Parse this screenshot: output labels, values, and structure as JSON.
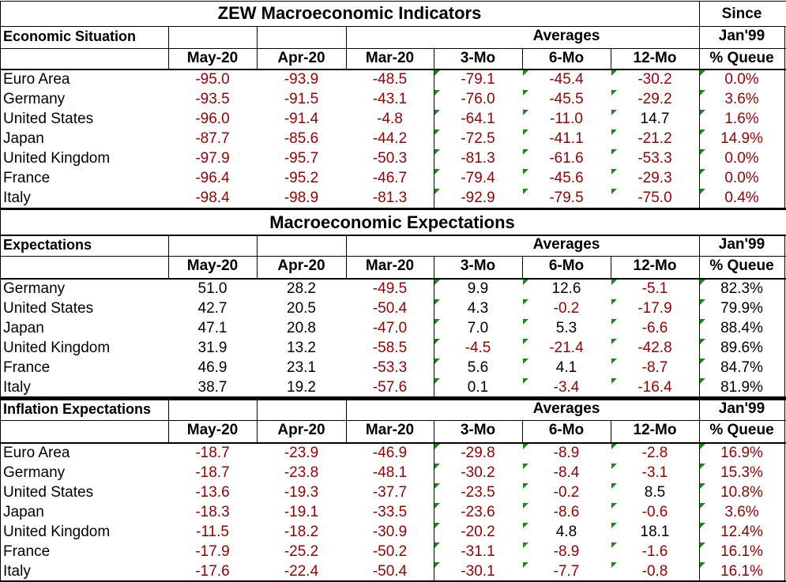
{
  "title": "ZEW Macroeconomic Indicators",
  "since_label": "Since",
  "columns": [
    "May-20",
    "Apr-20",
    "Mar-20",
    "3-Mo",
    "6-Mo",
    "12-Mo",
    "% Queue"
  ],
  "averages_label": "Averages",
  "jan_label": "Jan'99",
  "sections": [
    {
      "id": "economic-situation",
      "heading": "Economic Situation",
      "rows": [
        {
          "name": "Euro Area",
          "values": [
            "-95.0",
            "-93.9",
            "-48.5",
            "-79.1",
            "-45.4",
            "-30.2",
            "0.0%"
          ]
        },
        {
          "name": "Germany",
          "values": [
            "-93.5",
            "-91.5",
            "-43.1",
            "-76.0",
            "-45.5",
            "-29.2",
            "3.6%"
          ]
        },
        {
          "name": "United States",
          "values": [
            "-96.0",
            "-91.4",
            "-4.8",
            "-64.1",
            "-11.0",
            "14.7",
            "1.6%"
          ]
        },
        {
          "name": "Japan",
          "values": [
            "-87.7",
            "-85.6",
            "-44.2",
            "-72.5",
            "-41.1",
            "-21.2",
            "14.9%"
          ]
        },
        {
          "name": "United Kingdom",
          "values": [
            "-97.9",
            "-95.7",
            "-50.3",
            "-81.3",
            "-61.6",
            "-53.3",
            "0.0%"
          ]
        },
        {
          "name": "France",
          "values": [
            "-96.4",
            "-95.2",
            "-46.7",
            "-79.4",
            "-45.6",
            "-29.3",
            "0.0%"
          ]
        },
        {
          "name": "Italy",
          "values": [
            "-98.4",
            "-98.9",
            "-81.3",
            "-92.9",
            "-79.5",
            "-75.0",
            "0.4%"
          ]
        }
      ]
    },
    {
      "id": "expectations",
      "banner": "Macroeconomic Expectations",
      "heading": "Expectations",
      "rows": [
        {
          "name": "Germany",
          "values": [
            "51.0",
            "28.2",
            "-49.5",
            "9.9",
            "12.6",
            "-5.1",
            "82.3%"
          ]
        },
        {
          "name": "United States",
          "values": [
            "42.7",
            "20.5",
            "-50.4",
            "4.3",
            "-0.2",
            "-17.9",
            "79.9%"
          ]
        },
        {
          "name": "Japan",
          "values": [
            "47.1",
            "20.8",
            "-47.0",
            "7.0",
            "5.3",
            "-6.6",
            "88.4%"
          ]
        },
        {
          "name": "United Kingdom",
          "values": [
            "31.9",
            "13.2",
            "-58.5",
            "-4.5",
            "-21.4",
            "-42.8",
            "89.6%"
          ]
        },
        {
          "name": "France",
          "values": [
            "46.9",
            "23.1",
            "-53.3",
            "5.6",
            "4.1",
            "-8.7",
            "84.7%"
          ]
        },
        {
          "name": "Italy",
          "values": [
            "38.7",
            "19.2",
            "-57.6",
            "0.1",
            "-3.4",
            "-16.4",
            "81.9%"
          ]
        }
      ]
    },
    {
      "id": "inflation-expectations",
      "heading": "Inflation Expectations",
      "rows": [
        {
          "name": "Euro Area",
          "values": [
            "-18.7",
            "-23.9",
            "-46.9",
            "-29.8",
            "-8.9",
            "-2.8",
            "16.9%"
          ]
        },
        {
          "name": "Germany",
          "values": [
            "-18.7",
            "-23.8",
            "-48.1",
            "-30.2",
            "-8.4",
            "-3.1",
            "15.3%"
          ]
        },
        {
          "name": "United States",
          "values": [
            "-13.6",
            "-19.3",
            "-37.7",
            "-23.5",
            "-0.2",
            "8.5",
            "10.8%"
          ]
        },
        {
          "name": "Japan",
          "values": [
            "-18.3",
            "-19.1",
            "-33.5",
            "-23.6",
            "-8.6",
            "-0.6",
            "3.6%"
          ]
        },
        {
          "name": "United Kingdom",
          "values": [
            "-11.5",
            "-18.2",
            "-30.9",
            "-20.2",
            "4.8",
            "18.1",
            "12.4%"
          ]
        },
        {
          "name": "France",
          "values": [
            "-17.9",
            "-25.2",
            "-50.2",
            "-31.1",
            "-8.9",
            "-1.6",
            "16.1%"
          ]
        },
        {
          "name": "Italy",
          "values": [
            "-17.6",
            "-22.4",
            "-50.4",
            "-30.1",
            "-7.7",
            "-0.8",
            "16.1%"
          ]
        }
      ]
    }
  ],
  "colors": {
    "negative_text": "#9a0000",
    "positive_text": "#000000",
    "cell_marker": "#1a8a1a",
    "grid_line": "#000000",
    "background": "#ffffff"
  }
}
